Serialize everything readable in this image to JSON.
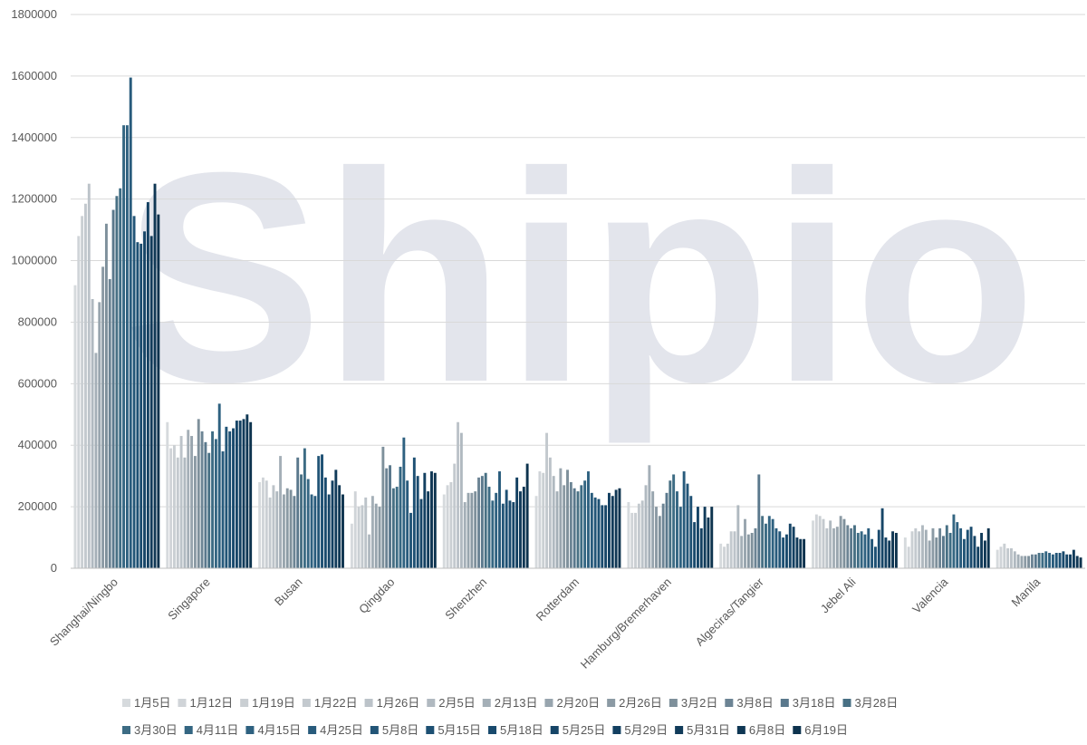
{
  "chart_data": {
    "type": "bar",
    "watermark": "Shipio",
    "categories": [
      "Shanghai/Ningbo",
      "Singapore",
      "Busan",
      "Qingdao",
      "Shenzhen",
      "Rotterdam",
      "Hamburg/Bremerhaven",
      "Algeciras/Tangier",
      "Jebel Ali",
      "Valencia",
      "Manila"
    ],
    "ylim": [
      0,
      1800000
    ],
    "yticks": [
      0,
      200000,
      400000,
      600000,
      800000,
      1000000,
      1200000,
      1400000,
      1600000,
      1800000
    ],
    "grid": true,
    "legend": "bottom",
    "series": [
      {
        "name": "1月5日",
        "color": "#d6dadd",
        "values": [
          920000,
          475000,
          280000,
          145000,
          240000,
          235000,
          215000,
          80000,
          155000,
          100000,
          60000
        ]
      },
      {
        "name": "1月12日",
        "color": "#d0d4d8",
        "values": [
          1080000,
          390000,
          295000,
          250000,
          270000,
          315000,
          180000,
          70000,
          175000,
          70000,
          70000
        ]
      },
      {
        "name": "1月19日",
        "color": "#cacfd3",
        "values": [
          1145000,
          400000,
          285000,
          200000,
          280000,
          310000,
          180000,
          80000,
          170000,
          120000,
          80000
        ]
      },
      {
        "name": "1月22日",
        "color": "#c3c9ce",
        "values": [
          1185000,
          360000,
          230000,
          205000,
          340000,
          440000,
          210000,
          120000,
          160000,
          130000,
          65000
        ]
      },
      {
        "name": "1月26日",
        "color": "#bcc3c9",
        "values": [
          1250000,
          430000,
          270000,
          230000,
          475000,
          360000,
          220000,
          120000,
          130000,
          120000,
          65000
        ]
      },
      {
        "name": "2月5日",
        "color": "#b0b9c0",
        "values": [
          875000,
          360000,
          250000,
          110000,
          440000,
          300000,
          270000,
          205000,
          155000,
          140000,
          55000
        ]
      },
      {
        "name": "2月13日",
        "color": "#a4afb7",
        "values": [
          700000,
          450000,
          365000,
          235000,
          215000,
          250000,
          335000,
          105000,
          130000,
          125000,
          45000
        ]
      },
      {
        "name": "2月20日",
        "color": "#98a5ae",
        "values": [
          865000,
          430000,
          240000,
          210000,
          245000,
          325000,
          250000,
          160000,
          135000,
          90000,
          40000
        ]
      },
      {
        "name": "2月26日",
        "color": "#8b9aa4",
        "values": [
          980000,
          365000,
          260000,
          200000,
          245000,
          270000,
          200000,
          110000,
          170000,
          130000,
          40000
        ]
      },
      {
        "name": "3月2日",
        "color": "#7e909b",
        "values": [
          1120000,
          485000,
          255000,
          395000,
          250000,
          320000,
          170000,
          115000,
          160000,
          100000,
          40000
        ]
      },
      {
        "name": "3月8日",
        "color": "#6c8494",
        "values": [
          940000,
          445000,
          235000,
          325000,
          295000,
          280000,
          210000,
          130000,
          140000,
          130000,
          45000
        ]
      },
      {
        "name": "3月18日",
        "color": "#5a788c",
        "values": [
          1165000,
          410000,
          360000,
          335000,
          300000,
          260000,
          245000,
          305000,
          130000,
          105000,
          45000
        ]
      },
      {
        "name": "3月28日",
        "color": "#487084",
        "values": [
          1210000,
          375000,
          305000,
          260000,
          310000,
          250000,
          285000,
          170000,
          140000,
          140000,
          50000
        ]
      },
      {
        "name": "3月30日",
        "color": "#3d6c84",
        "values": [
          1235000,
          445000,
          390000,
          265000,
          265000,
          270000,
          305000,
          145000,
          115000,
          115000,
          50000
        ]
      },
      {
        "name": "4月11日",
        "color": "#346682",
        "values": [
          1440000,
          420000,
          290000,
          330000,
          220000,
          285000,
          250000,
          170000,
          120000,
          175000,
          55000
        ]
      },
      {
        "name": "4月15日",
        "color": "#2e6180",
        "values": [
          1440000,
          535000,
          240000,
          425000,
          245000,
          315000,
          200000,
          160000,
          110000,
          150000,
          50000
        ]
      },
      {
        "name": "4月25日",
        "color": "#285b7c",
        "values": [
          1595000,
          380000,
          235000,
          285000,
          315000,
          245000,
          315000,
          130000,
          130000,
          130000,
          45000
        ]
      },
      {
        "name": "5月8日",
        "color": "#225577",
        "values": [
          1145000,
          460000,
          365000,
          180000,
          210000,
          230000,
          275000,
          120000,
          95000,
          95000,
          50000
        ]
      },
      {
        "name": "5月15日",
        "color": "#1d5073",
        "values": [
          1060000,
          445000,
          370000,
          360000,
          255000,
          225000,
          235000,
          100000,
          70000,
          125000,
          50000
        ]
      },
      {
        "name": "5月18日",
        "color": "#194a6d",
        "values": [
          1055000,
          455000,
          295000,
          300000,
          220000,
          205000,
          150000,
          110000,
          125000,
          135000,
          55000
        ]
      },
      {
        "name": "5月25日",
        "color": "#164567",
        "values": [
          1095000,
          480000,
          240000,
          225000,
          215000,
          205000,
          200000,
          145000,
          195000,
          105000,
          45000
        ]
      },
      {
        "name": "5月29日",
        "color": "#134061",
        "values": [
          1190000,
          480000,
          285000,
          310000,
          295000,
          245000,
          130000,
          135000,
          100000,
          70000,
          45000
        ]
      },
      {
        "name": "5月31日",
        "color": "#113b5a",
        "values": [
          1080000,
          485000,
          320000,
          250000,
          250000,
          235000,
          200000,
          100000,
          90000,
          115000,
          60000
        ]
      },
      {
        "name": "6月8日",
        "color": "#0f3754",
        "values": [
          1250000,
          500000,
          270000,
          315000,
          265000,
          255000,
          165000,
          95000,
          120000,
          90000,
          40000
        ]
      },
      {
        "name": "6月19日",
        "color": "#0d334e",
        "values": [
          1150000,
          475000,
          240000,
          310000,
          340000,
          260000,
          200000,
          95000,
          115000,
          130000,
          35000
        ]
      }
    ]
  }
}
